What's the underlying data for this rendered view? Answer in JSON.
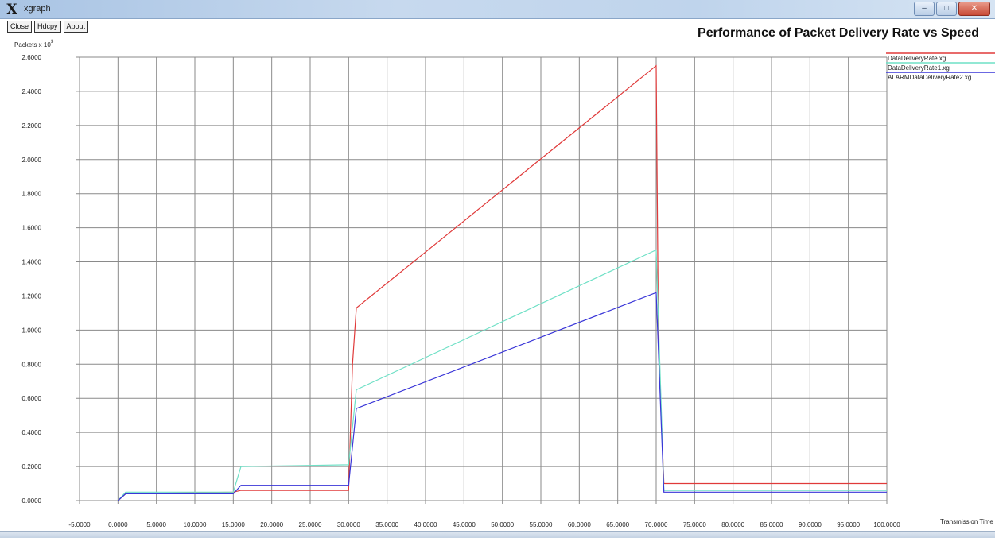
{
  "window": {
    "title": "xgraph",
    "icon": "x-logo-icon",
    "controls": [
      "minimize",
      "maximize",
      "close"
    ]
  },
  "toolbar": {
    "close_label": "Close",
    "hardcopy_label": "Hdcpy",
    "about_label": "About"
  },
  "colors": {
    "series1": "#e03a3a",
    "series2": "#6fe0c6",
    "series3": "#3a36d8",
    "grid": "#8a8a8a"
  },
  "chart_data": {
    "type": "line",
    "title": "Performance of Packet Delivery Rate vs Speed",
    "ylabel": "Packets x 10",
    "ylabel_exponent": "3",
    "xlabel": "Transmission Time",
    "xlim": [
      -5,
      100
    ],
    "ylim": [
      0,
      2.6
    ],
    "grid": true,
    "legend_position": "top-right",
    "x_ticks": [
      "-5.0000",
      "0.0000",
      "5.0000",
      "10.0000",
      "15.0000",
      "20.0000",
      "25.0000",
      "30.0000",
      "35.0000",
      "40.0000",
      "45.0000",
      "50.0000",
      "55.0000",
      "60.0000",
      "65.0000",
      "70.0000",
      "75.0000",
      "80.0000",
      "85.0000",
      "90.0000",
      "95.0000",
      "100.0000"
    ],
    "y_ticks": [
      "0.0000",
      "0.2000",
      "0.4000",
      "0.6000",
      "0.8000",
      "1.0000",
      "1.2000",
      "1.4000",
      "1.6000",
      "1.8000",
      "2.0000",
      "2.2000",
      "2.4000",
      "2.6000"
    ],
    "series": [
      {
        "name": "DataDeliveryRate.xg",
        "color": "#e03a3a",
        "x": [
          0,
          1,
          15,
          16,
          30,
          30.5,
          31,
          70,
          70.3,
          71,
          100
        ],
        "y": [
          0,
          0.04,
          0.05,
          0.06,
          0.06,
          0.8,
          1.13,
          2.55,
          0.9,
          0.1,
          0.1
        ]
      },
      {
        "name": "DataDeliveryRate1.xg",
        "color": "#6fe0c6",
        "x": [
          0,
          1,
          15,
          16,
          30,
          31,
          70,
          71,
          100
        ],
        "y": [
          0,
          0.05,
          0.05,
          0.2,
          0.21,
          0.65,
          1.47,
          0.06,
          0.06
        ]
      },
      {
        "name": "ALARMDataDeliveryRate2.xg",
        "color": "#3a36d8",
        "x": [
          0,
          1,
          15,
          16,
          30,
          31,
          70,
          71,
          100
        ],
        "y": [
          0,
          0.04,
          0.04,
          0.09,
          0.09,
          0.54,
          1.22,
          0.05,
          0.05
        ]
      }
    ]
  }
}
